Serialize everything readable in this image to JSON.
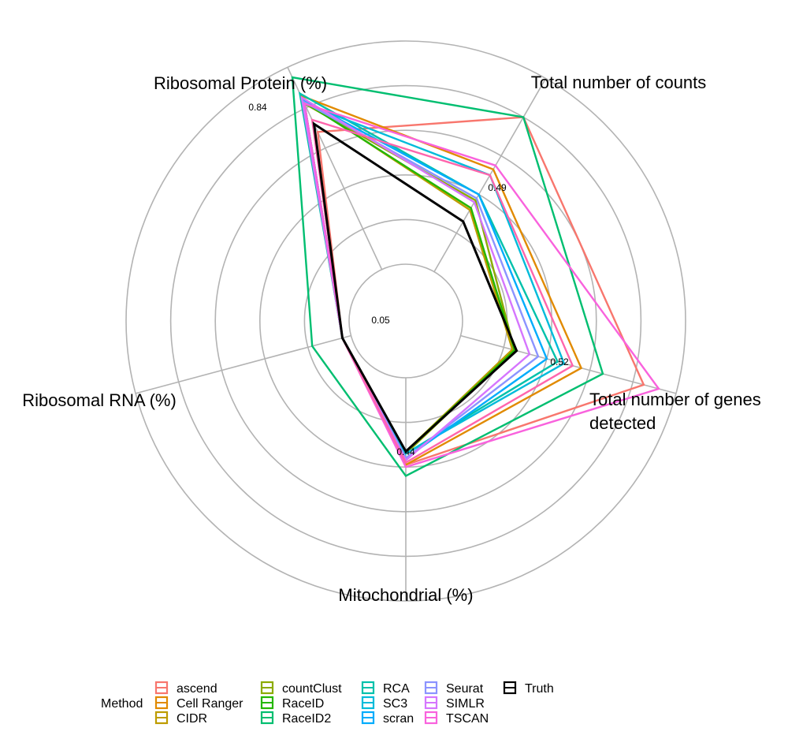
{
  "chart_data": {
    "type": "radar",
    "axes": [
      {
        "label": [
          "Ribosomal Protein (%)"
        ],
        "max_label": "0.84"
      },
      {
        "label": [
          "Total number of counts"
        ],
        "max_label": "0.49"
      },
      {
        "label": [
          "Total number of genes",
          "detected"
        ],
        "max_label": "0.52"
      },
      {
        "label": [
          "Mitochondrial (%)"
        ],
        "max_label": "0.44"
      },
      {
        "label": [
          "Ribosomal RNA (%)"
        ],
        "max_label": "0.05"
      }
    ],
    "radial_max": 1.0,
    "rings": 6,
    "legend_title": "Method",
    "legend_position": "bottom",
    "series": [
      {
        "name": "ascend",
        "color": "#F8766D",
        "values": [
          0.68,
          0.8,
          0.85,
          0.39,
          0.04
        ]
      },
      {
        "name": "Cell Ranger",
        "color": "#E18A00",
        "values": [
          0.86,
          0.53,
          0.56,
          0.39,
          0.04
        ]
      },
      {
        "name": "CIDR",
        "color": "#BE9C00",
        "values": [
          0.84,
          0.32,
          0.24,
          0.33,
          0.04
        ]
      },
      {
        "name": "countClust",
        "color": "#8CAB00",
        "values": [
          0.82,
          0.37,
          0.25,
          0.34,
          0.04
        ]
      },
      {
        "name": "RaceID",
        "color": "#24B700",
        "values": [
          0.83,
          0.33,
          0.25,
          0.33,
          0.04
        ]
      },
      {
        "name": "RaceID2",
        "color": "#00BE70",
        "values": [
          0.95,
          0.8,
          0.66,
          0.44,
          0.18
        ]
      },
      {
        "name": "RCA",
        "color": "#00C1AB",
        "values": [
          0.87,
          0.4,
          0.45,
          0.34,
          0.04
        ]
      },
      {
        "name": "SC3",
        "color": "#00BBDA",
        "values": [
          0.82,
          0.5,
          0.48,
          0.34,
          0.04
        ]
      },
      {
        "name": "scran",
        "color": "#00ACFC",
        "values": [
          0.84,
          0.4,
          0.4,
          0.36,
          0.04
        ]
      },
      {
        "name": "Seurat",
        "color": "#8B93FF",
        "values": [
          0.83,
          0.38,
          0.36,
          0.36,
          0.04
        ]
      },
      {
        "name": "SIMLR",
        "color": "#D575FE",
        "values": [
          0.85,
          0.36,
          0.32,
          0.37,
          0.04
        ]
      },
      {
        "name": "TSCAN",
        "color": "#F962DD",
        "values": [
          0.82,
          0.55,
          0.92,
          0.4,
          0.04
        ]
      },
      {
        "name": "Truth",
        "color": "#FF65AC",
        "values": [
          0.74,
          0.5,
          0.52,
          0.38,
          0.04
        ]
      },
      {
        "name": "Truth",
        "color": "#000000",
        "values": [
          0.72,
          0.26,
          0.26,
          0.33,
          0.04
        ]
      }
    ]
  }
}
